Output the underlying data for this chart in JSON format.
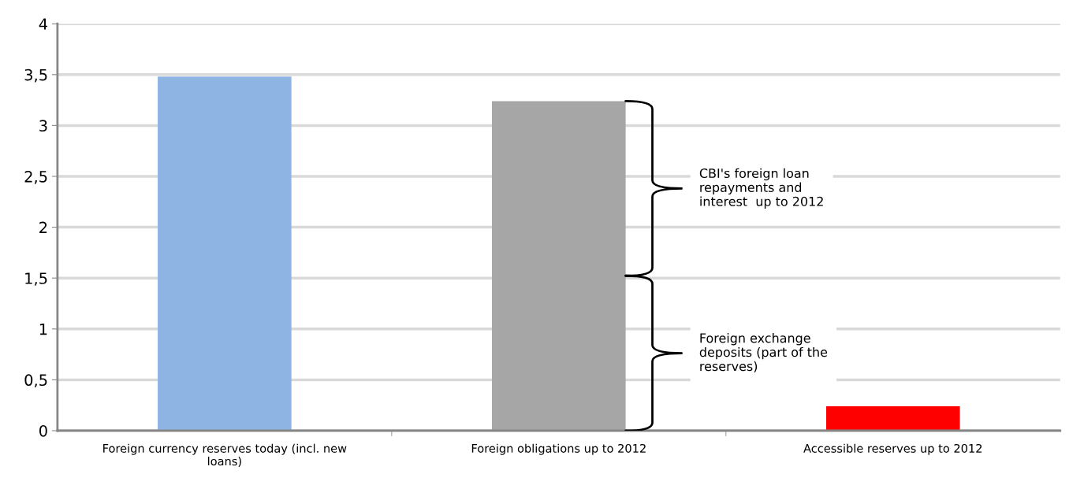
{
  "chart_data": {
    "type": "bar",
    "categories": [
      "Foreign currency reserves today (incl. new\nloans)",
      "Foreign obligations up to 2012",
      "Accessible reserves up to 2012"
    ],
    "values": [
      3.48,
      3.24,
      0.24
    ],
    "colors": [
      "#8eb4e3",
      "#a6a6a6",
      "#ff0000"
    ],
    "ylim": [
      0,
      4
    ],
    "yticks": [
      0,
      {
        "value": 0.5,
        "label": "0,5"
      },
      1,
      {
        "value": 1.5,
        "label": "1,5"
      },
      2,
      {
        "value": 2.5,
        "label": "2,5"
      },
      3,
      {
        "value": 3.5,
        "label": "3,5"
      },
      4
    ],
    "grid": "y",
    "annotations": [
      "Foreign exchange\ndeposits (part of the\nreserves)",
      "CBI's foreign loan\nrepayments and\ninterest  up to 2012"
    ]
  }
}
